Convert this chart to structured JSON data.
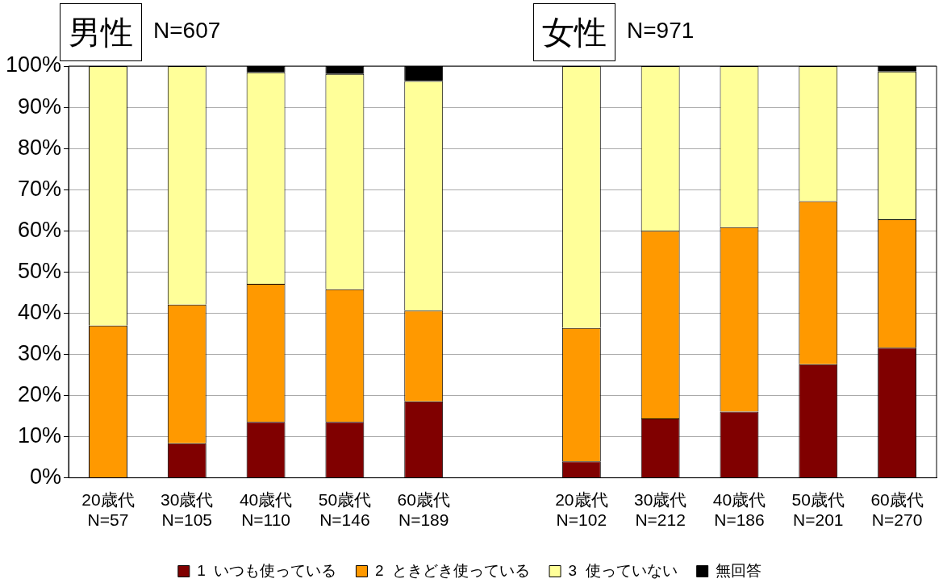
{
  "chart_data": {
    "type": "bar",
    "stacked": true,
    "categories": [
      "20歳代\nN=57",
      "30歳代\nN=105",
      "40歳代\nN=110",
      "50歳代\nN=146",
      "60歳代\nN=189",
      null,
      "20歳代\nN=102",
      "30歳代\nN=212",
      "40歳代\nN=186",
      "50歳代\nN=201",
      "60歳代\nN=270"
    ],
    "series": [
      {
        "name": "1  いつも使っている",
        "color": "#800000",
        "values": [
          0,
          8.4,
          13.6,
          13.6,
          18.6,
          null,
          4.0,
          14.4,
          16.1,
          27.6,
          31.6
        ]
      },
      {
        "name": "2  ときどき使っている",
        "color": "#ff9900",
        "values": [
          37.0,
          33.7,
          33.5,
          32.2,
          22.0,
          null,
          32.4,
          45.6,
          44.8,
          39.6,
          31.2
        ]
      },
      {
        "name": "3  使っていない",
        "color": "#ffff99",
        "values": [
          63.0,
          57.9,
          51.4,
          52.3,
          55.8,
          null,
          63.6,
          40.0,
          39.1,
          32.8,
          35.9
        ]
      },
      {
        "name": "無回答",
        "color": "#000000",
        "values": [
          0,
          0,
          1.5,
          1.9,
          3.6,
          null,
          0,
          0,
          0,
          0,
          1.3
        ]
      }
    ],
    "ylim": [
      0,
      100
    ],
    "yticks": [
      {
        "value": 0,
        "label": "0%"
      },
      {
        "value": 10,
        "label": "10%"
      },
      {
        "value": 20,
        "label": "20%"
      },
      {
        "value": 30,
        "label": "30%"
      },
      {
        "value": 40,
        "label": "40%"
      },
      {
        "value": 50,
        "label": "50%"
      },
      {
        "value": 60,
        "label": "60%"
      },
      {
        "value": 70,
        "label": "70%"
      },
      {
        "value": 80,
        "label": "80%"
      },
      {
        "value": 90,
        "label": "90%"
      },
      {
        "value": 100,
        "label": "100%"
      }
    ],
    "grid": "y",
    "legend": "bottom",
    "annotations": [
      "男性",
      "N=607",
      "女性",
      "N=971"
    ]
  }
}
